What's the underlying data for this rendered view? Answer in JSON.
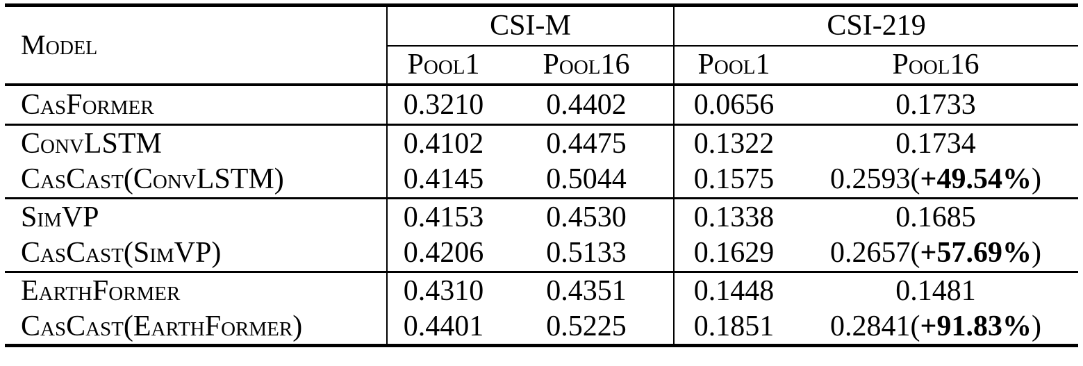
{
  "table": {
    "header": {
      "model_label": "Model",
      "groups": [
        {
          "title": "CSI-M",
          "pool1": "Pool1",
          "pool16": "Pool16"
        },
        {
          "title": "CSI-219",
          "pool1": "Pool1",
          "pool16": "Pool16"
        }
      ]
    },
    "rows": [
      {
        "model": "CasFormer",
        "csi_m_pool1": "0.3210",
        "csi_m_pool16": "0.4402",
        "csi_219_pool1": "0.0656",
        "csi_219_pool16": "0.1733"
      },
      {
        "model": "ConvLSTM",
        "csi_m_pool1": "0.4102",
        "csi_m_pool16": "0.4475",
        "csi_219_pool1": "0.1322",
        "csi_219_pool16": "0.1734"
      },
      {
        "model": "CasCast(ConvLSTM)",
        "csi_m_pool1": "0.4145",
        "csi_m_pool16": "0.5044",
        "csi_219_pool1": "0.1575",
        "csi_219_pool16": "0.2593",
        "gain_open": "(",
        "gain": "+49.54%",
        "gain_close": ")"
      },
      {
        "model": "SimVP",
        "csi_m_pool1": "0.4153",
        "csi_m_pool16": "0.4530",
        "csi_219_pool1": "0.1338",
        "csi_219_pool16": "0.1685"
      },
      {
        "model": "CasCast(SimVP)",
        "csi_m_pool1": "0.4206",
        "csi_m_pool16": "0.5133",
        "csi_219_pool1": "0.1629",
        "csi_219_pool16": "0.2657",
        "gain_open": "(",
        "gain": "+57.69%",
        "gain_close": ")"
      },
      {
        "model": "EarthFormer",
        "csi_m_pool1": "0.4310",
        "csi_m_pool16": "0.4351",
        "csi_219_pool1": "0.1448",
        "csi_219_pool16": "0.1481"
      },
      {
        "model": "CasCast(EarthFormer)",
        "csi_m_pool1": "0.4401",
        "csi_m_pool16": "0.5225",
        "csi_219_pool1": "0.1851",
        "csi_219_pool16": "0.2841",
        "gain_open": "(",
        "gain": "+91.83%",
        "gain_close": ")"
      }
    ]
  },
  "colors": {
    "text": "#000000",
    "background": "#ffffff",
    "rule": "#000000"
  }
}
